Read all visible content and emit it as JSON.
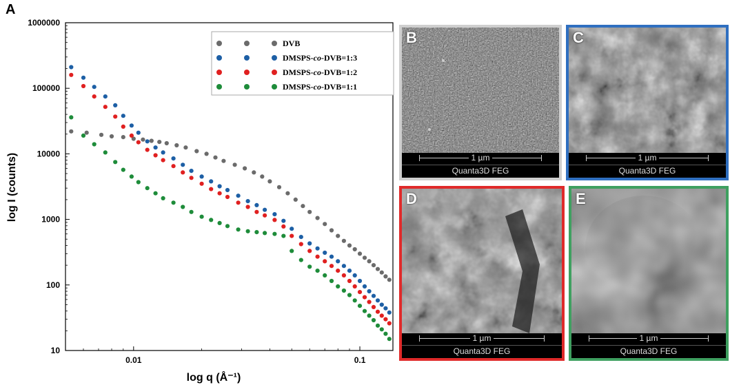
{
  "figure_label": "A",
  "chart_data": {
    "type": "scatter",
    "x_scale": "log",
    "y_scale": "log",
    "xlim": [
      0.005,
      0.14
    ],
    "ylim": [
      10,
      1000000
    ],
    "xlabel": "log q (Å⁻¹)",
    "ylabel": "log I (counts)",
    "x_ticks": [
      0.01,
      0.1
    ],
    "x_tick_labels": [
      "0.01",
      "0.1"
    ],
    "y_ticks": [
      10,
      100,
      1000,
      10000,
      100000,
      1000000
    ],
    "y_tick_labels": [
      "10",
      "100",
      "1000",
      "10000",
      "100000",
      "1000000"
    ],
    "grid": false,
    "legend_position": "top-right",
    "series": [
      {
        "name": "DVB",
        "color": "#6b6b6b",
        "x": [
          0.0053,
          0.0062,
          0.0072,
          0.008,
          0.009,
          0.01,
          0.011,
          0.012,
          0.013,
          0.014,
          0.0155,
          0.017,
          0.019,
          0.021,
          0.023,
          0.025,
          0.028,
          0.031,
          0.034,
          0.037,
          0.04,
          0.044,
          0.048,
          0.052,
          0.056,
          0.06,
          0.065,
          0.07,
          0.075,
          0.08,
          0.085,
          0.09,
          0.095,
          0.1,
          0.105,
          0.11,
          0.115,
          0.12,
          0.125,
          0.13,
          0.135
        ],
        "y": [
          22000,
          21000,
          19500,
          18500,
          18000,
          17000,
          16500,
          15800,
          15200,
          14500,
          13500,
          12500,
          11000,
          10000,
          8800,
          7800,
          6800,
          6000,
          5200,
          4500,
          3800,
          3100,
          2500,
          2000,
          1600,
          1300,
          1050,
          850,
          680,
          560,
          470,
          400,
          350,
          300,
          260,
          230,
          200,
          175,
          155,
          135,
          120
        ]
      },
      {
        "name": "DMSPS-co-DVB=1:3",
        "color": "#1d5fa5",
        "x": [
          0.0053,
          0.006,
          0.0067,
          0.0075,
          0.0083,
          0.009,
          0.0098,
          0.0105,
          0.0115,
          0.0125,
          0.0135,
          0.015,
          0.0165,
          0.018,
          0.02,
          0.022,
          0.024,
          0.026,
          0.029,
          0.032,
          0.035,
          0.038,
          0.042,
          0.046,
          0.05,
          0.055,
          0.06,
          0.065,
          0.07,
          0.075,
          0.08,
          0.085,
          0.09,
          0.095,
          0.1,
          0.105,
          0.11,
          0.115,
          0.12,
          0.125,
          0.13,
          0.135
        ],
        "y": [
          210000,
          145000,
          105000,
          75000,
          55000,
          38000,
          27000,
          21000,
          15500,
          12500,
          10500,
          8500,
          6800,
          5500,
          4500,
          3800,
          3200,
          2800,
          2300,
          1900,
          1650,
          1400,
          1200,
          950,
          720,
          540,
          430,
          360,
          310,
          270,
          230,
          195,
          165,
          140,
          115,
          95,
          80,
          68,
          58,
          50,
          44,
          38
        ]
      },
      {
        "name": "DMSPS-co-DVB=1:2",
        "color": "#e02020",
        "x": [
          0.0053,
          0.006,
          0.0067,
          0.0075,
          0.0083,
          0.009,
          0.0098,
          0.0105,
          0.0115,
          0.0125,
          0.0135,
          0.015,
          0.0165,
          0.018,
          0.02,
          0.022,
          0.024,
          0.026,
          0.029,
          0.032,
          0.035,
          0.038,
          0.042,
          0.046,
          0.05,
          0.055,
          0.06,
          0.065,
          0.07,
          0.075,
          0.08,
          0.085,
          0.09,
          0.095,
          0.1,
          0.105,
          0.11,
          0.115,
          0.12,
          0.125,
          0.13,
          0.135
        ],
        "y": [
          160000,
          108000,
          75000,
          52000,
          37000,
          26000,
          19000,
          15000,
          11500,
          9500,
          8000,
          6500,
          5200,
          4300,
          3500,
          2900,
          2500,
          2200,
          1800,
          1550,
          1300,
          1150,
          980,
          780,
          560,
          420,
          330,
          270,
          230,
          195,
          165,
          140,
          115,
          95,
          78,
          65,
          55,
          46,
          39,
          34,
          30,
          26
        ]
      },
      {
        "name": "DMSPS-co-DVB=1:1",
        "color": "#1e8c3a",
        "x": [
          0.0053,
          0.006,
          0.0067,
          0.0075,
          0.0083,
          0.009,
          0.0098,
          0.0105,
          0.0115,
          0.0125,
          0.0135,
          0.015,
          0.0165,
          0.018,
          0.02,
          0.022,
          0.024,
          0.026,
          0.029,
          0.032,
          0.035,
          0.038,
          0.042,
          0.046,
          0.05,
          0.055,
          0.06,
          0.065,
          0.07,
          0.075,
          0.08,
          0.085,
          0.09,
          0.095,
          0.1,
          0.105,
          0.11,
          0.115,
          0.12,
          0.125,
          0.13,
          0.135
        ],
        "y": [
          36000,
          19000,
          14000,
          10500,
          7500,
          5700,
          4500,
          3700,
          3000,
          2500,
          2100,
          1800,
          1550,
          1300,
          1100,
          980,
          880,
          790,
          700,
          660,
          640,
          620,
          600,
          560,
          330,
          240,
          190,
          165,
          140,
          115,
          95,
          82,
          70,
          58,
          48,
          40,
          34,
          29,
          24,
          21,
          18,
          15
        ]
      }
    ]
  },
  "sem_panels": [
    {
      "label": "B",
      "scale": "1 µm",
      "instrument": "Quanta3D FEG",
      "border_color": "#cfcfcf"
    },
    {
      "label": "C",
      "scale": "1 µm",
      "instrument": "Quanta3D FEG",
      "border_color": "#2f6fc0"
    },
    {
      "label": "D",
      "scale": "1 µm",
      "instrument": "Quanta3D FEG",
      "border_color": "#e02a2a"
    },
    {
      "label": "E",
      "scale": "1 µm",
      "instrument": "Quanta3D FEG",
      "border_color": "#3fa060"
    }
  ]
}
